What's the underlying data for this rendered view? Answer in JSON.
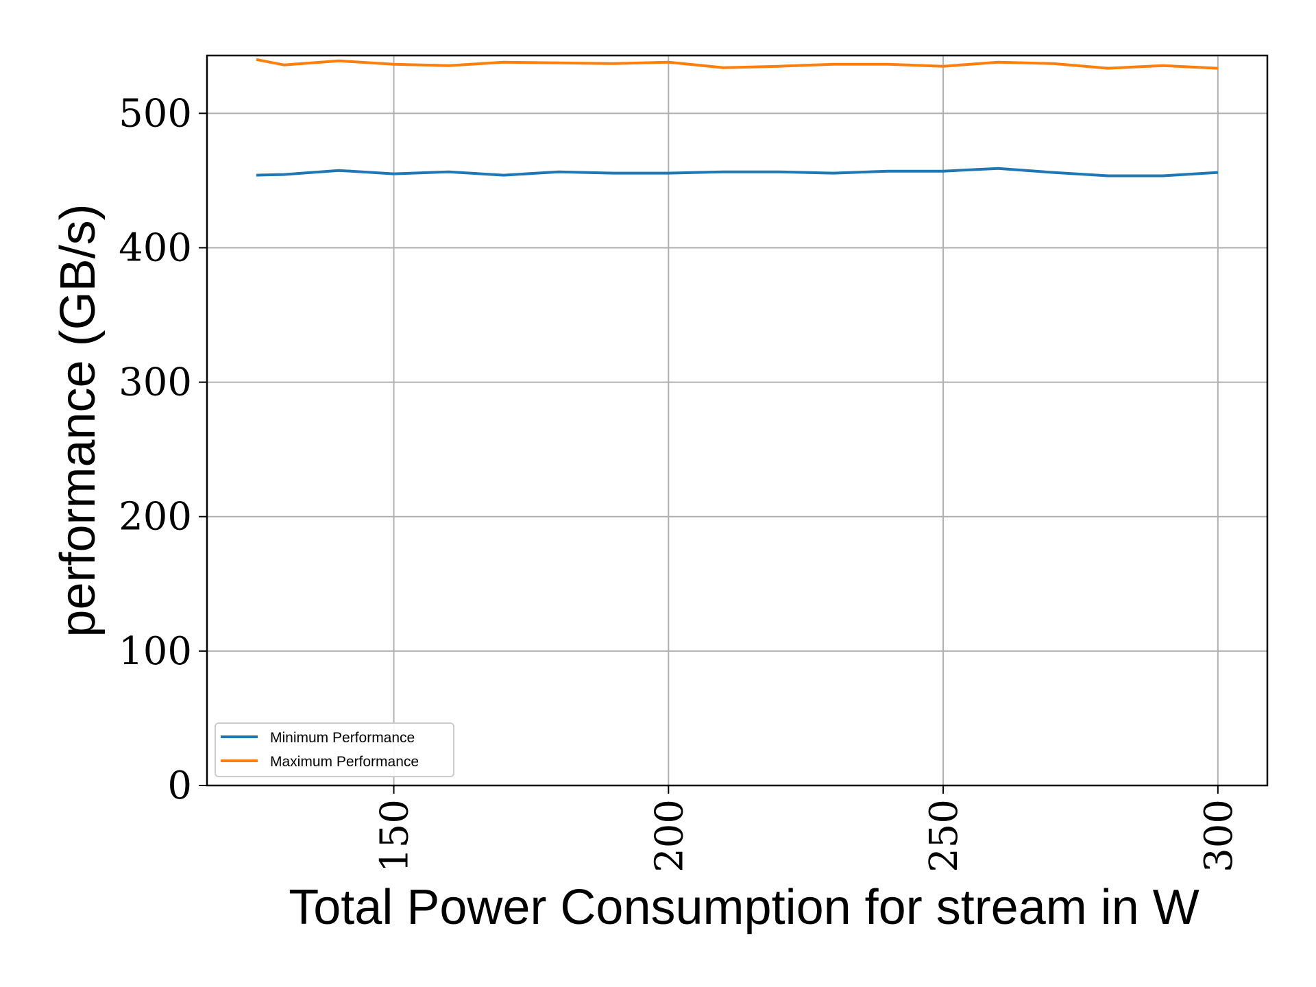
{
  "chart_data": {
    "type": "line",
    "xlabel": "Total Power Consumption for stream in W",
    "ylabel": "performance (GB/s)",
    "xlim": [
      116,
      309
    ],
    "ylim": [
      0,
      543
    ],
    "xticks": [
      150,
      200,
      250,
      300
    ],
    "yticks": [
      0,
      100,
      200,
      300,
      400,
      500
    ],
    "grid": true,
    "legend_position": "lower-left",
    "x": [
      125,
      130,
      140,
      150,
      160,
      170,
      180,
      190,
      200,
      210,
      220,
      230,
      240,
      250,
      260,
      270,
      280,
      290,
      300
    ],
    "series": [
      {
        "name": "Minimum Performance",
        "color": "#1f77b4",
        "values": [
          454,
          454.5,
          457.5,
          455,
          456.5,
          454,
          456.5,
          455.5,
          455.5,
          456.5,
          456.5,
          455.5,
          457,
          457,
          459,
          456,
          453.5,
          453.5,
          456
        ]
      },
      {
        "name": "Maximum Performance",
        "color": "#ff7f0e",
        "values": [
          540,
          536,
          539,
          536.5,
          535.5,
          538,
          537.5,
          537,
          538,
          534,
          535,
          536.5,
          536.5,
          535,
          538,
          537,
          533.5,
          535.5,
          533.5
        ]
      }
    ]
  }
}
